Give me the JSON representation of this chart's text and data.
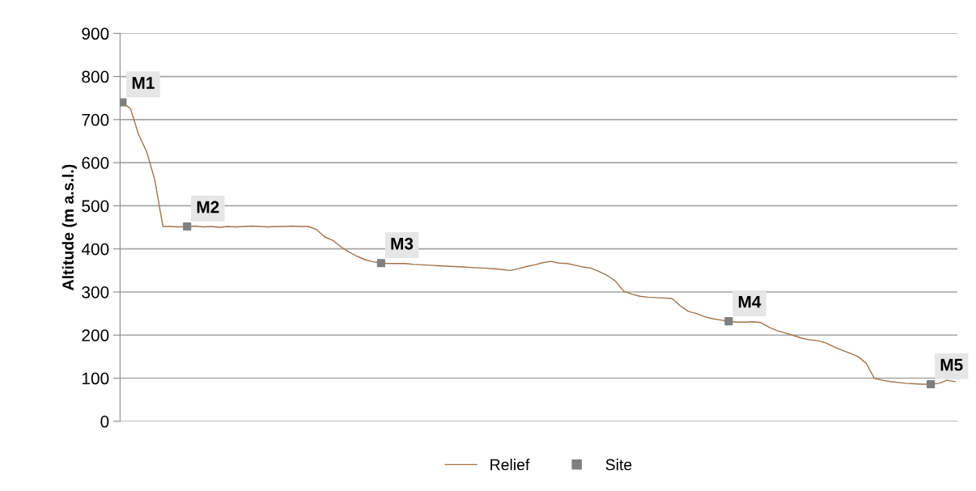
{
  "chart_data": {
    "type": "line",
    "ylabel": "Altitude (m a.s.l.)",
    "categories": [
      null,
      null,
      null,
      null,
      null,
      null,
      null,
      null,
      null,
      null,
      null,
      null,
      null,
      null,
      null,
      null,
      null,
      null,
      null,
      null,
      null,
      null,
      null,
      null,
      null,
      null,
      null,
      null,
      null,
      null,
      null,
      null,
      null,
      null,
      null,
      null,
      null,
      null,
      null,
      null,
      null,
      null,
      null,
      null,
      null,
      null,
      null,
      null,
      null,
      null,
      null,
      null,
      null,
      null,
      null,
      null,
      null,
      null,
      null,
      null,
      null,
      null,
      null,
      null,
      null,
      null,
      null,
      null,
      null,
      null,
      null,
      null,
      null,
      null,
      null,
      null,
      null,
      null,
      null,
      null,
      null,
      null,
      null,
      null,
      null,
      null,
      null,
      null,
      null,
      null,
      null,
      null,
      null,
      null,
      null,
      null,
      null,
      null,
      null,
      null,
      null,
      null,
      null,
      null
    ],
    "series": [
      {
        "name": "Relief",
        "color": "#a0724a",
        "values": [
          740,
          725,
          665,
          625,
          560,
          452,
          452,
          451,
          452,
          453,
          451,
          452,
          450,
          452,
          451,
          452,
          453,
          452,
          451,
          452,
          452,
          453,
          452,
          452,
          445,
          428,
          420,
          405,
          393,
          383,
          375,
          370,
          367,
          366,
          366,
          366,
          364,
          363,
          362,
          361,
          360,
          359,
          358,
          357,
          356,
          355,
          354,
          352,
          350,
          354,
          359,
          363,
          368,
          371,
          367,
          366,
          362,
          358,
          355,
          347,
          338,
          325,
          302,
          295,
          290,
          288,
          287,
          286,
          285,
          268,
          255,
          250,
          243,
          238,
          235,
          232,
          230,
          230,
          231,
          229,
          218,
          210,
          205,
          199,
          193,
          189,
          187,
          182,
          173,
          165,
          158,
          150,
          135,
          100,
          95,
          92,
          90,
          88,
          87,
          86,
          86,
          88,
          95,
          92
        ]
      },
      {
        "name": "Site",
        "type": "scatter",
        "color": "#7f7f7f",
        "marker": "square",
        "values": [
          740,
          null,
          null,
          null,
          null,
          null,
          null,
          null,
          452,
          null,
          null,
          null,
          null,
          null,
          null,
          null,
          null,
          null,
          null,
          null,
          null,
          null,
          null,
          null,
          null,
          null,
          null,
          null,
          null,
          null,
          null,
          null,
          367,
          null,
          null,
          null,
          null,
          null,
          null,
          null,
          null,
          null,
          null,
          null,
          null,
          null,
          null,
          null,
          null,
          null,
          null,
          null,
          null,
          null,
          null,
          null,
          null,
          null,
          null,
          null,
          null,
          null,
          null,
          null,
          null,
          null,
          null,
          null,
          null,
          null,
          null,
          null,
          null,
          null,
          null,
          232,
          null,
          null,
          null,
          null,
          null,
          null,
          null,
          null,
          null,
          null,
          null,
          null,
          null,
          null,
          null,
          null,
          null,
          null,
          null,
          null,
          null,
          null,
          null,
          null,
          86,
          null,
          null,
          null
        ],
        "value_labels": [
          "M1",
          null,
          null,
          null,
          null,
          null,
          null,
          null,
          "M2",
          null,
          null,
          null,
          null,
          null,
          null,
          null,
          null,
          null,
          null,
          null,
          null,
          null,
          null,
          null,
          null,
          null,
          null,
          null,
          null,
          null,
          null,
          null,
          "M3",
          null,
          null,
          null,
          null,
          null,
          null,
          null,
          null,
          null,
          null,
          null,
          null,
          null,
          null,
          null,
          null,
          null,
          null,
          null,
          null,
          null,
          null,
          null,
          null,
          null,
          null,
          null,
          null,
          null,
          null,
          null,
          null,
          null,
          null,
          null,
          null,
          null,
          null,
          null,
          null,
          null,
          null,
          "M4",
          null,
          null,
          null,
          null,
          null,
          null,
          null,
          null,
          null,
          null,
          null,
          null,
          null,
          null,
          null,
          null,
          null,
          null,
          null,
          null,
          null,
          null,
          null,
          null,
          "M5",
          null,
          null,
          null
        ]
      }
    ],
    "ylim": [
      0,
      900
    ],
    "yticks": [
      0,
      100,
      200,
      300,
      400,
      500,
      600,
      700,
      800,
      900
    ],
    "grid": "y",
    "legend": "bottom",
    "tick_labels": "y"
  }
}
